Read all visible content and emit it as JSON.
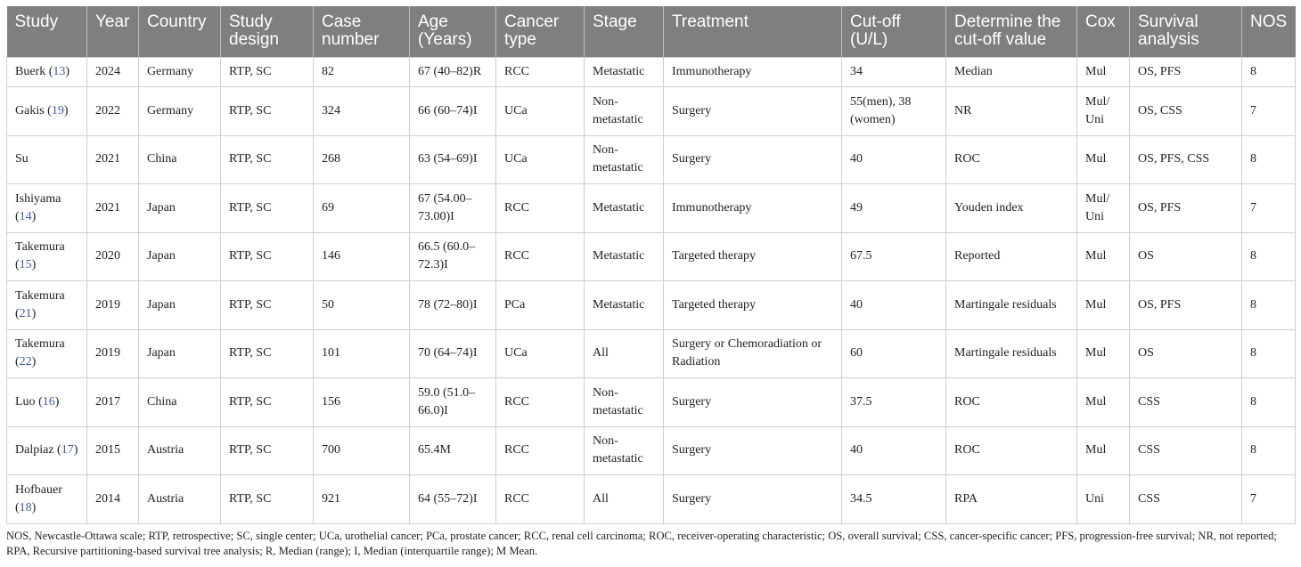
{
  "headers": [
    "Study",
    "Year",
    "Country",
    "Study design",
    "Case number",
    "Age (Years)",
    "Cancer type",
    "Stage",
    "Treatment",
    "Cut-off (U/L)",
    "Determine the cut-off value",
    "Cox",
    "Survival analysis",
    "NOS"
  ],
  "rows": [
    {
      "study": "Buerk",
      "ref": "13",
      "year": "2024",
      "country": "Germany",
      "design": "RTP, SC",
      "cases": "82",
      "age": "67 (40–82)R",
      "cancer": "RCC",
      "stage": "Metastatic",
      "treatment": "Immunotherapy",
      "cutoff": "34",
      "determine": "Median",
      "cox": "Mul",
      "survival": "OS, PFS",
      "nos": "8"
    },
    {
      "study": "Gakis",
      "ref": "19",
      "year": "2022",
      "country": "Germany",
      "design": "RTP, SC",
      "cases": "324",
      "age": "66 (60–74)I",
      "cancer": "UCa",
      "stage": "Non-metastatic",
      "treatment": "Surgery",
      "cutoff": "55(men), 38 (women)",
      "determine": "NR",
      "cox": "Mul/ Uni",
      "survival": "OS, CSS",
      "nos": "7"
    },
    {
      "study": "Su",
      "ref": "",
      "year": "2021",
      "country": "China",
      "design": "RTP, SC",
      "cases": "268",
      "age": "63 (54–69)I",
      "cancer": "UCa",
      "stage": "Non-metastatic",
      "treatment": "Surgery",
      "cutoff": "40",
      "determine": "ROC",
      "cox": "Mul",
      "survival": "OS, PFS, CSS",
      "nos": "8"
    },
    {
      "study": "Ishiyama",
      "ref": "14",
      "year": "2021",
      "country": "Japan",
      "design": "RTP, SC",
      "cases": "69",
      "age": "67 (54.00–73.00)I",
      "cancer": "RCC",
      "stage": "Metastatic",
      "treatment": "Immunotherapy",
      "cutoff": "49",
      "determine": "Youden index",
      "cox": "Mul/ Uni",
      "survival": "OS, PFS",
      "nos": "7"
    },
    {
      "study": "Takemura",
      "ref": "15",
      "year": "2020",
      "country": "Japan",
      "design": "RTP, SC",
      "cases": "146",
      "age": "66.5 (60.0–72.3)I",
      "cancer": "RCC",
      "stage": "Metastatic",
      "treatment": "Targeted therapy",
      "cutoff": "67.5",
      "determine": "Reported",
      "cox": "Mul",
      "survival": "OS",
      "nos": "8"
    },
    {
      "study": "Takemura",
      "ref": "21",
      "year": "2019",
      "country": "Japan",
      "design": "RTP, SC",
      "cases": "50",
      "age": "78 (72–80)I",
      "cancer": "PCa",
      "stage": "Metastatic",
      "treatment": "Targeted therapy",
      "cutoff": "40",
      "determine": "Martingale residuals",
      "cox": "Mul",
      "survival": "OS, PFS",
      "nos": "8"
    },
    {
      "study": "Takemura",
      "ref": "22",
      "year": "2019",
      "country": "Japan",
      "design": "RTP, SC",
      "cases": "101",
      "age": "70 (64–74)I",
      "cancer": "UCa",
      "stage": "All",
      "treatment": "Surgery or Chemoradiation or Radiation",
      "cutoff": "60",
      "determine": "Martingale residuals",
      "cox": "Mul",
      "survival": "OS",
      "nos": "8"
    },
    {
      "study": "Luo",
      "ref": "16",
      "year": "2017",
      "country": "China",
      "design": "RTP, SC",
      "cases": "156",
      "age": "59.0 (51.0–66.0)I",
      "cancer": "RCC",
      "stage": "Non-metastatic",
      "treatment": "Surgery",
      "cutoff": "37.5",
      "determine": "ROC",
      "cox": "Mul",
      "survival": "CSS",
      "nos": "8"
    },
    {
      "study": "Dalpiaz",
      "ref": "17",
      "year": "2015",
      "country": "Austria",
      "design": "RTP, SC",
      "cases": "700",
      "age": "65.4M",
      "cancer": "RCC",
      "stage": "Non-metastatic",
      "treatment": "Surgery",
      "cutoff": "40",
      "determine": "ROC",
      "cox": "Mul",
      "survival": "CSS",
      "nos": "8"
    },
    {
      "study": "Hofbauer",
      "ref": "18",
      "year": "2014",
      "country": "Austria",
      "design": "RTP, SC",
      "cases": "921",
      "age": "64 (55–72)I",
      "cancer": "RCC",
      "stage": "All",
      "treatment": "Surgery",
      "cutoff": "34.5",
      "determine": "RPA",
      "cox": "Uni",
      "survival": "CSS",
      "nos": "7"
    }
  ],
  "footnote": "NOS, Newcastle-Ottawa scale; RTP, retrospective; SC, single center; UCa, urothelial cancer; PCa, prostate cancer; RCC, renal cell carcinoma; ROC, receiver-operating characteristic; OS, overall survival; CSS, cancer-specific cancer; PFS, progression-free survival; NR, not reported; RPA, Recursive partitioning-based survival tree analysis; R, Median (range); I, Median (interquartile range); M Mean."
}
